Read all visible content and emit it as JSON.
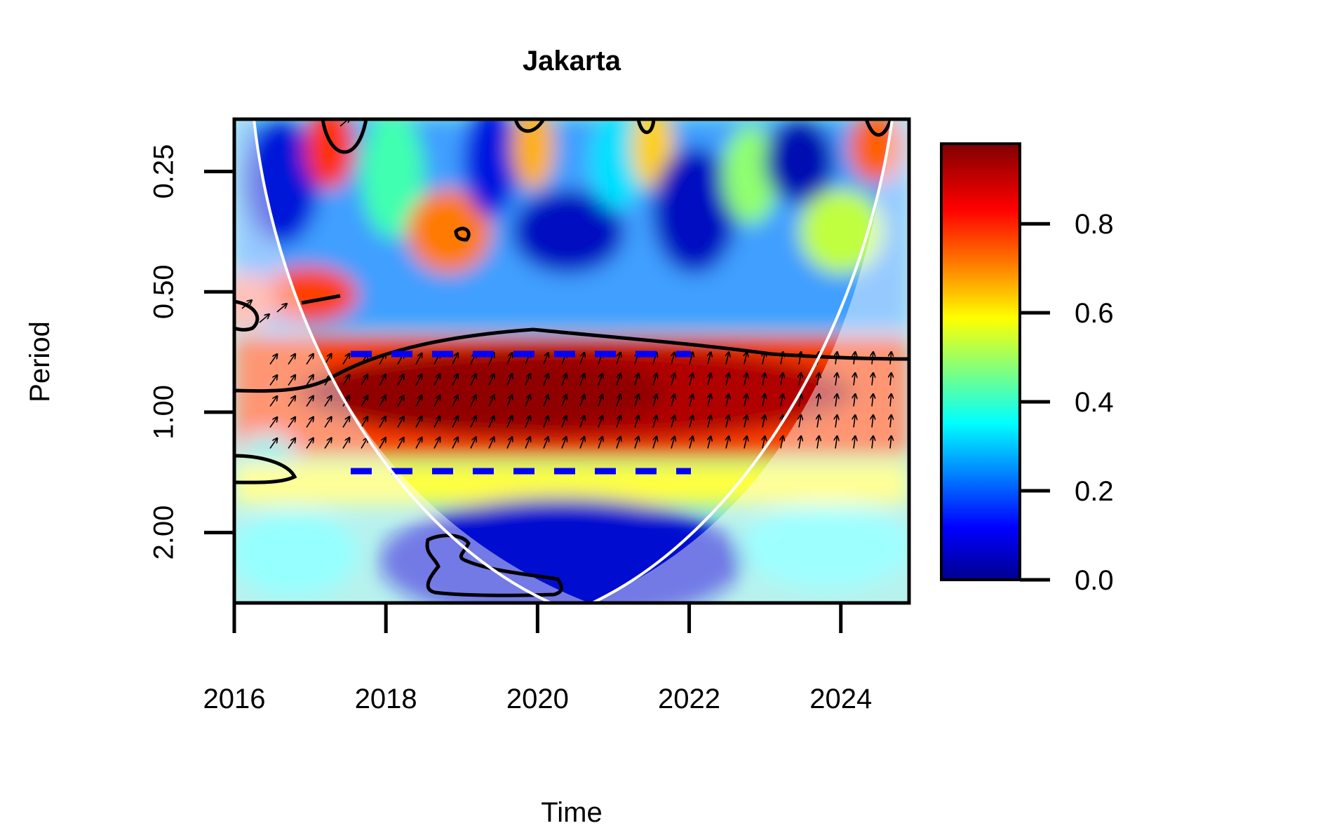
{
  "chart_data": {
    "type": "heatmap",
    "title": "Jakarta",
    "xlabel": "Time",
    "ylabel": "Period",
    "x_ticks": [
      "2016",
      "2018",
      "2020",
      "2022",
      "2024"
    ],
    "y_ticks": [
      "0.25",
      "0.50",
      "1.00",
      "2.00"
    ],
    "xlim": [
      2016,
      2024.9
    ],
    "ylim_period": [
      0.185,
      3.0
    ],
    "y_scale": "log2",
    "y_reversed": true,
    "colorbar": {
      "ticks": [
        "0.0",
        "0.2",
        "0.4",
        "0.6",
        "0.8"
      ],
      "range": [
        0,
        0.98
      ],
      "palette": [
        "#00008f",
        "#0000ff",
        "#00ffff",
        "#ffff00",
        "#ff8000",
        "#ff0000",
        "#800000"
      ]
    },
    "dominant_band": {
      "x_start": 2017.5,
      "x_end": 2022.0,
      "period_low": 0.7,
      "period_high": 1.4,
      "value": 0.95
    },
    "cone_of_influence": "white curve",
    "significance_contours": "black lines",
    "phase_arrows": "black arrows"
  }
}
